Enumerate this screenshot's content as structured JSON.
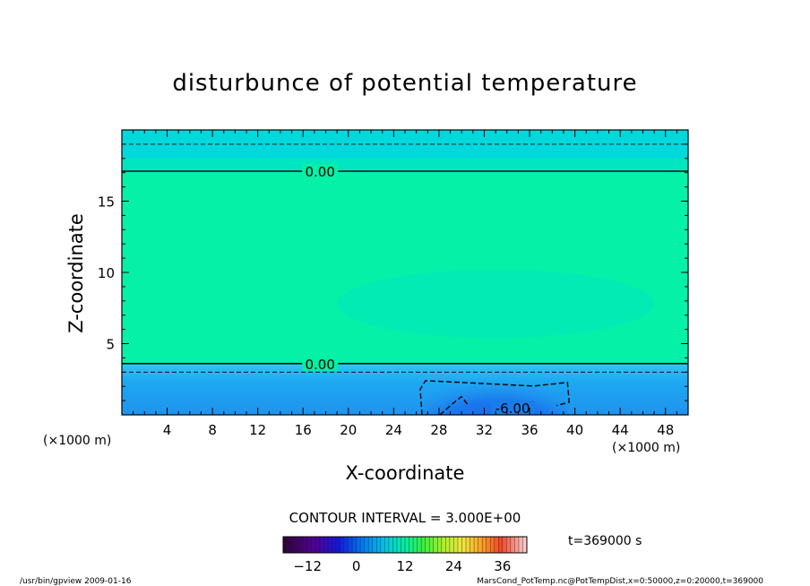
{
  "chart_data": {
    "type": "heatmap",
    "title": "disturbunce of potential temperature",
    "xlabel": "X-coordinate",
    "ylabel": "Z-coordinate",
    "x_unit": "(×1000 m)",
    "x_unit_right": "(×1000 m)",
    "xlim": [
      0,
      50
    ],
    "ylim": [
      0,
      20
    ],
    "x_ticks": [
      4,
      8,
      12,
      16,
      20,
      24,
      28,
      32,
      36,
      40,
      44,
      48
    ],
    "y_ticks": [
      5,
      10,
      15
    ],
    "contour_interval": "CONTOUR INTERVAL = 3.000E+00",
    "contour_labels": [
      {
        "text": "0.00",
        "x": 17.5,
        "z": 17.1
      },
      {
        "text": "0.00",
        "x": 17.5,
        "z": 3.6
      },
      {
        "text": "-6.00",
        "x": 34.5,
        "z": 0.5
      }
    ],
    "contours_solid_zero_z": [
      17.1,
      3.6
    ],
    "contours_dashed_z": [
      19.0,
      3.0
    ],
    "min_region": {
      "x_range": [
        26.5,
        39.5
      ],
      "z_range": [
        0.0,
        2.6
      ],
      "value": -6.0
    },
    "colorbar": {
      "ticks": [
        -12,
        0,
        12,
        24,
        36
      ],
      "range": [
        -18,
        42
      ]
    },
    "time_label": "t=369000 s",
    "footer_left": "/usr/bin/gpview  2009-01-16",
    "footer_right": "MarsCond_PotTemp.nc@PotTempDist,x=0:50000,z=0:20000,t=369000"
  }
}
